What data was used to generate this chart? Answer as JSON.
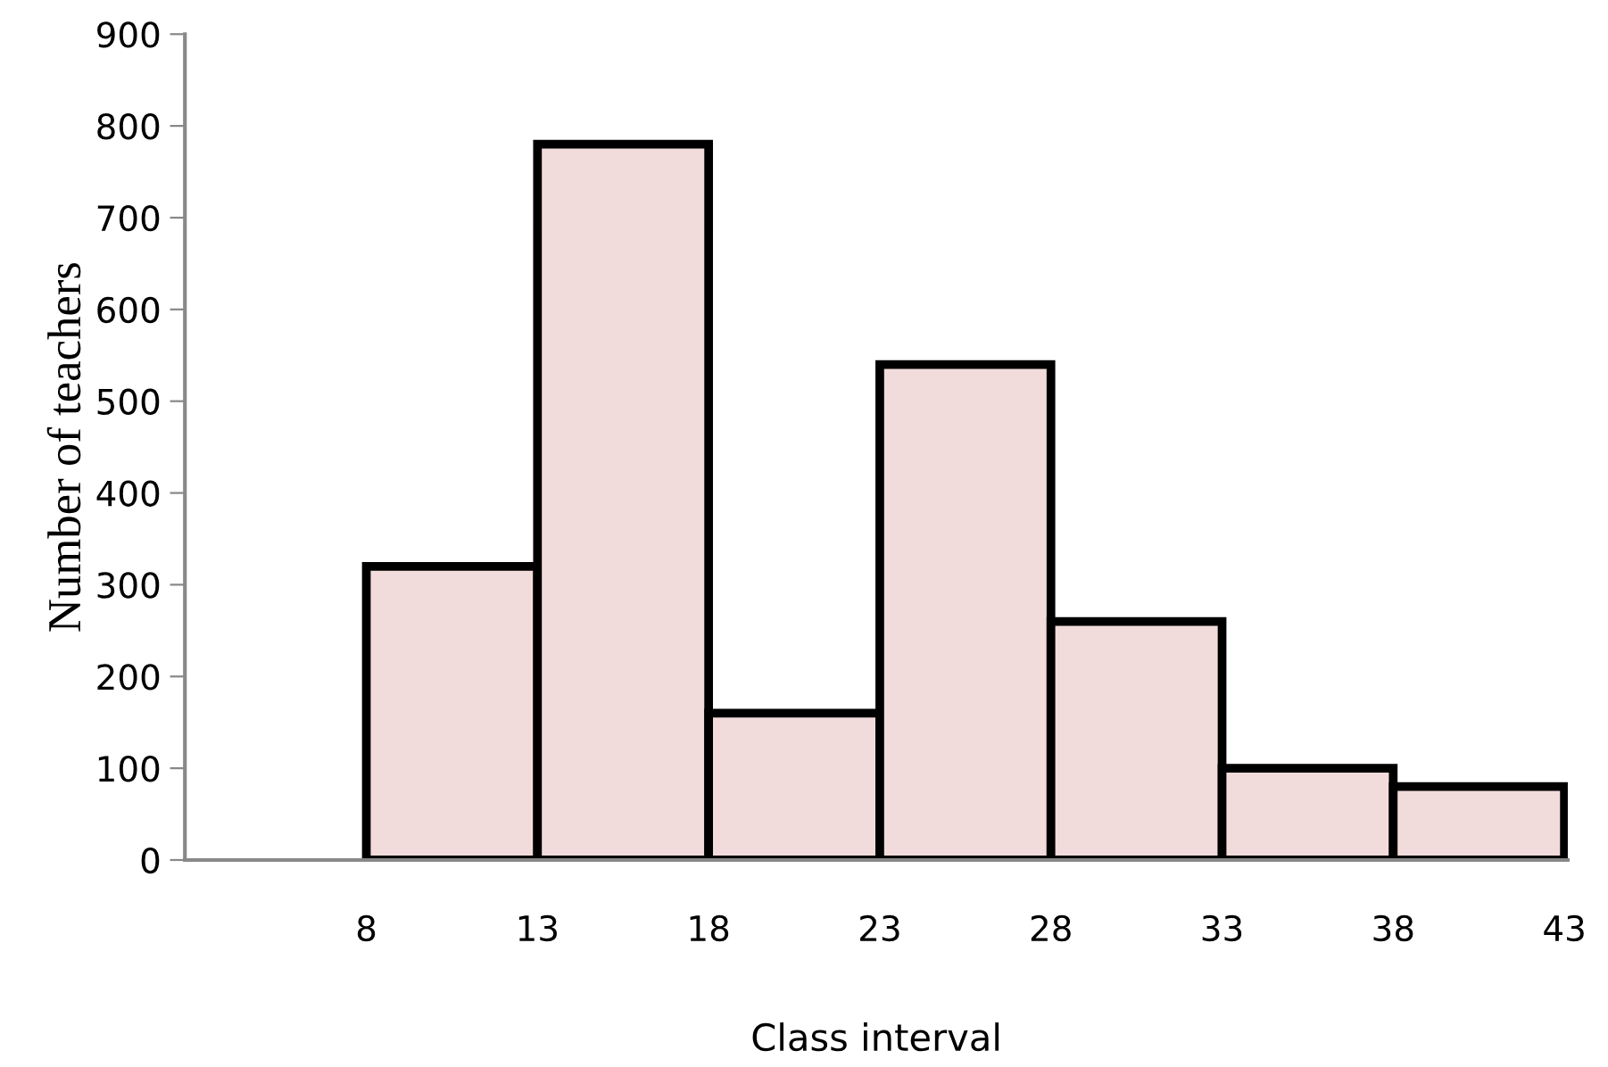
{
  "chart_data": {
    "type": "histogram",
    "xlabel": "Class interval",
    "ylabel": "Number of teachers",
    "bins": [
      8,
      13,
      18,
      23,
      28,
      33,
      38,
      43
    ],
    "values": [
      320,
      780,
      160,
      540,
      260,
      100,
      80
    ],
    "color": "#f2dcdb",
    "xlim": [
      2.7,
      43.1
    ],
    "xticks": [
      8,
      13,
      18,
      23,
      28,
      33,
      38,
      43
    ],
    "ylim": [
      0,
      900
    ],
    "yticks": [
      0,
      100,
      200,
      300,
      400,
      500,
      600,
      700,
      800,
      900
    ],
    "grid": false
  }
}
